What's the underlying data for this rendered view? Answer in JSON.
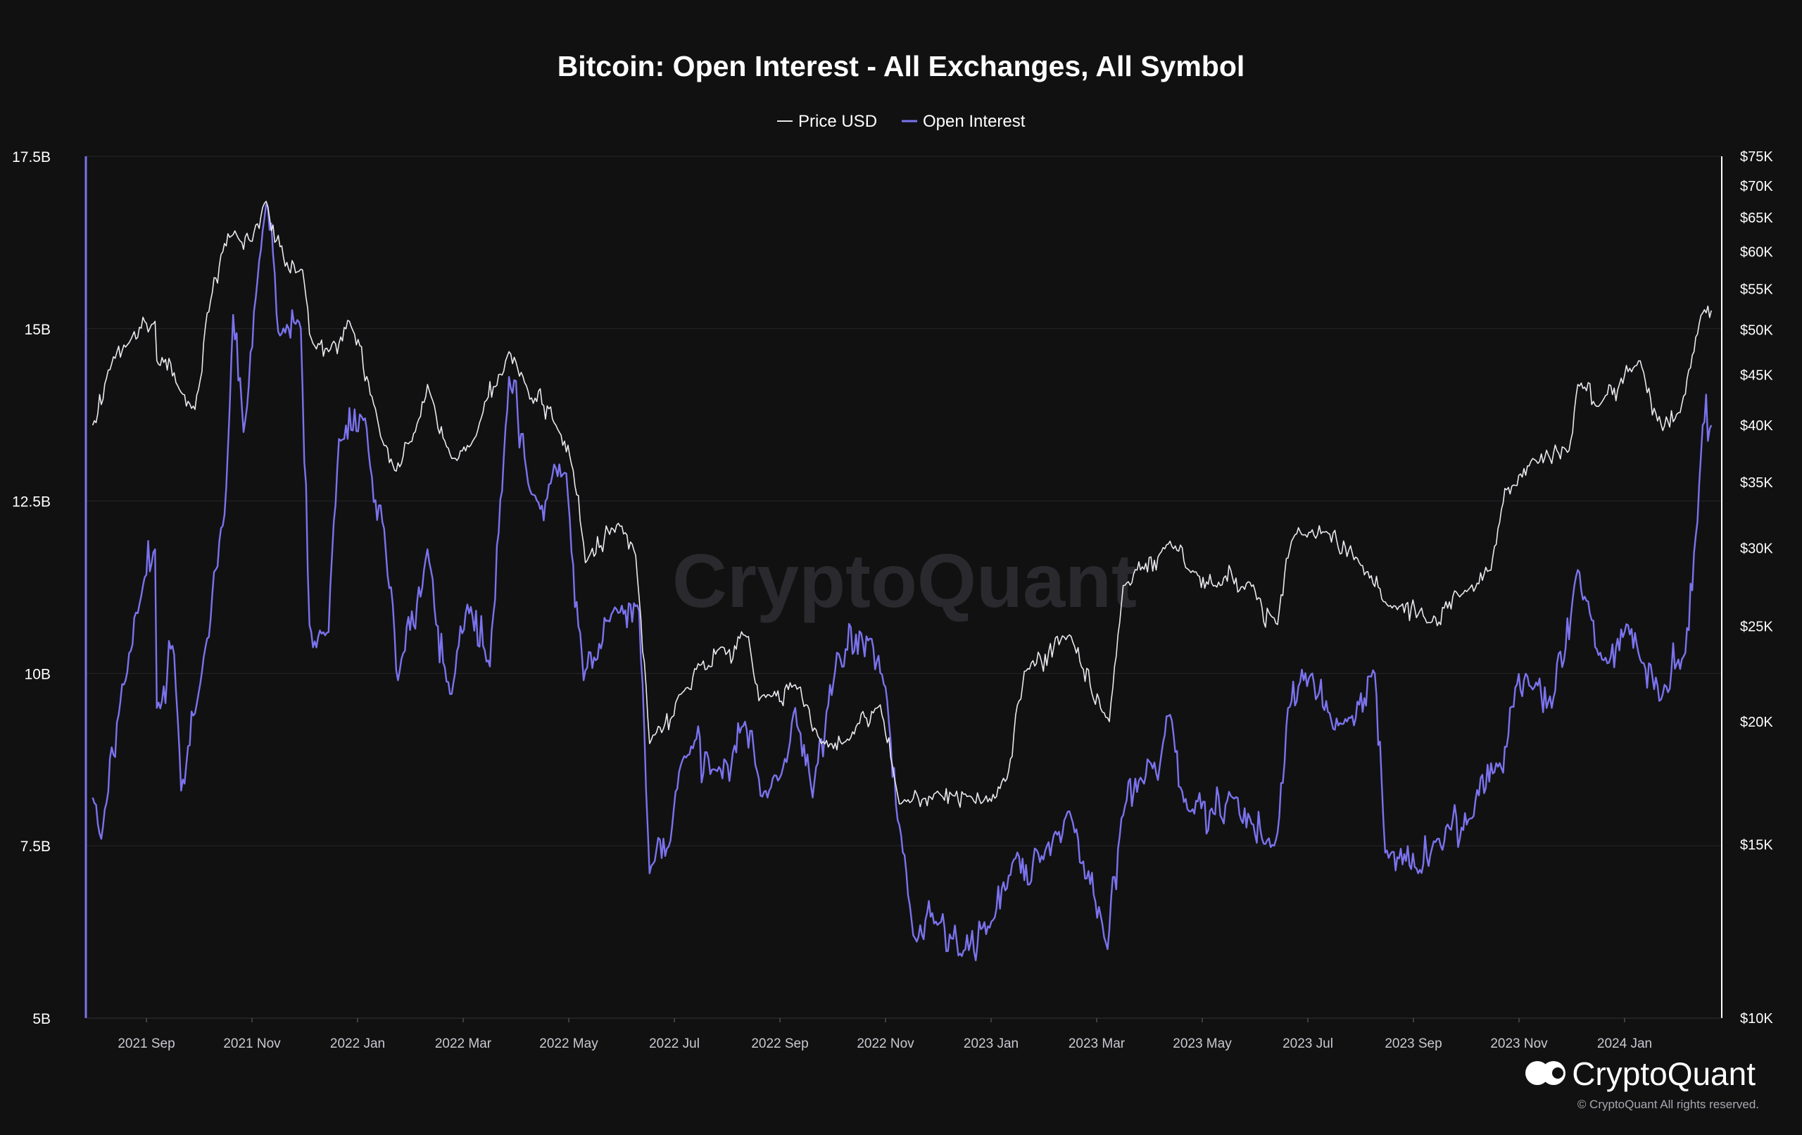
{
  "chart_data": {
    "type": "line",
    "title": "Bitcoin: Open Interest - All Exchanges, All Symbol",
    "legend": {
      "placement": "top-center",
      "entries": [
        {
          "label": "Price USD",
          "color": "#e9e9ee"
        },
        {
          "label": "Open Interest",
          "color": "#7b73ee"
        }
      ]
    },
    "x_ticks": [
      "2021 Sep",
      "2021 Nov",
      "2022 Jan",
      "2022 Mar",
      "2022 May",
      "2022 Jul",
      "2022 Sep",
      "2022 Nov",
      "2023 Jan",
      "2023 Mar",
      "2023 May",
      "2023 Jul",
      "2023 Sep",
      "2023 Nov",
      "2024 Jan"
    ],
    "x_range": [
      "2021-08-01",
      "2024-02-20"
    ],
    "left_axis": {
      "ticks": [
        "17.5B",
        "15B",
        "12.5B",
        "10B",
        "7.5B",
        "5B"
      ],
      "range": [
        5,
        17.5
      ],
      "unit": "B"
    },
    "right_axis": {
      "scale": "log",
      "ticks": [
        "$75K",
        "$70K",
        "$65K",
        "$60K",
        "$55K",
        "$50K",
        "$45K",
        "$40K",
        "$35K",
        "$30K",
        "$25K",
        "$20K",
        "$15K",
        "$10K"
      ],
      "tick_values": [
        75000,
        70000,
        65000,
        60000,
        55000,
        50000,
        45000,
        40000,
        35000,
        30000,
        25000,
        20000,
        15000,
        10000
      ],
      "range": [
        10000,
        75000
      ]
    },
    "grid": true,
    "series": [
      {
        "name": "Price USD",
        "axis": "right",
        "color": "#e9e9ee",
        "points": [
          [
            "2021-08-01",
            40000
          ],
          [
            "2021-08-10",
            45500
          ],
          [
            "2021-08-22",
            48500
          ],
          [
            "2021-09-06",
            51000
          ],
          [
            "2021-09-07",
            46500
          ],
          [
            "2021-09-20",
            43500
          ],
          [
            "2021-09-29",
            41500
          ],
          [
            "2021-10-06",
            52000
          ],
          [
            "2021-10-15",
            60000
          ],
          [
            "2021-10-22",
            63000
          ],
          [
            "2021-11-01",
            61500
          ],
          [
            "2021-11-09",
            67500
          ],
          [
            "2021-11-20",
            58000
          ],
          [
            "2021-11-30",
            57500
          ],
          [
            "2021-12-04",
            49500
          ],
          [
            "2021-12-15",
            47500
          ],
          [
            "2021-12-27",
            51000
          ],
          [
            "2022-01-10",
            42000
          ],
          [
            "2022-01-22",
            36000
          ],
          [
            "2022-02-01",
            38500
          ],
          [
            "2022-02-10",
            44000
          ],
          [
            "2022-02-24",
            37000
          ],
          [
            "2022-03-10",
            39000
          ],
          [
            "2022-03-29",
            47500
          ],
          [
            "2022-04-10",
            42500
          ],
          [
            "2022-04-25",
            40000
          ],
          [
            "2022-05-05",
            36000
          ],
          [
            "2022-05-12",
            29000
          ],
          [
            "2022-05-31",
            31800
          ],
          [
            "2022-06-10",
            29500
          ],
          [
            "2022-06-18",
            19000
          ],
          [
            "2022-07-08",
            21500
          ],
          [
            "2022-07-29",
            23800
          ],
          [
            "2022-08-14",
            24400
          ],
          [
            "2022-08-20",
            21000
          ],
          [
            "2022-09-10",
            21800
          ],
          [
            "2022-09-25",
            19000
          ],
          [
            "2022-10-10",
            19200
          ],
          [
            "2022-10-29",
            20800
          ],
          [
            "2022-11-09",
            16500
          ],
          [
            "2022-12-01",
            17000
          ],
          [
            "2022-12-20",
            16800
          ],
          [
            "2023-01-01",
            16600
          ],
          [
            "2023-01-10",
            17500
          ],
          [
            "2023-01-20",
            22500
          ],
          [
            "2023-02-15",
            24500
          ],
          [
            "2023-03-10",
            20000
          ],
          [
            "2023-03-18",
            27500
          ],
          [
            "2023-04-14",
            30500
          ],
          [
            "2023-04-25",
            28500
          ],
          [
            "2023-05-10",
            27500
          ],
          [
            "2023-05-30",
            27700
          ],
          [
            "2023-06-15",
            25100
          ],
          [
            "2023-06-23",
            30500
          ],
          [
            "2023-07-13",
            31200
          ],
          [
            "2023-07-31",
            29300
          ],
          [
            "2023-08-17",
            26300
          ],
          [
            "2023-09-11",
            25200
          ],
          [
            "2023-09-30",
            27000
          ],
          [
            "2023-10-16",
            28500
          ],
          [
            "2023-10-24",
            34500
          ],
          [
            "2023-11-09",
            37000
          ],
          [
            "2023-11-30",
            37700
          ],
          [
            "2023-12-05",
            44000
          ],
          [
            "2023-12-18",
            42000
          ],
          [
            "2024-01-10",
            46500
          ],
          [
            "2024-01-23",
            39500
          ],
          [
            "2024-02-05",
            43000
          ],
          [
            "2024-02-10",
            47500
          ],
          [
            "2024-02-15",
            52000
          ],
          [
            "2024-02-20",
            52300
          ]
        ]
      },
      {
        "name": "Open Interest",
        "axis": "left",
        "unit": "B",
        "color": "#7b73ee",
        "points": [
          [
            "2021-08-01",
            8.2
          ],
          [
            "2021-08-06",
            7.6
          ],
          [
            "2021-08-20",
            9.9
          ],
          [
            "2021-08-28",
            11.0
          ],
          [
            "2021-09-06",
            11.8
          ],
          [
            "2021-09-07",
            9.5
          ],
          [
            "2021-09-16",
            10.4
          ],
          [
            "2021-09-21",
            8.3
          ],
          [
            "2021-10-01",
            9.7
          ],
          [
            "2021-10-16",
            12.3
          ],
          [
            "2021-10-21",
            15.2
          ],
          [
            "2021-10-27",
            13.5
          ],
          [
            "2021-11-09",
            16.8
          ],
          [
            "2021-11-17",
            14.9
          ],
          [
            "2021-11-29",
            15.0
          ],
          [
            "2021-12-04",
            10.7
          ],
          [
            "2021-12-15",
            10.6
          ],
          [
            "2021-12-21",
            13.4
          ],
          [
            "2022-01-05",
            13.7
          ],
          [
            "2022-01-16",
            12.1
          ],
          [
            "2022-01-24",
            9.9
          ],
          [
            "2022-02-10",
            11.8
          ],
          [
            "2022-02-23",
            9.7
          ],
          [
            "2022-03-05",
            11.0
          ],
          [
            "2022-03-18",
            10.1
          ],
          [
            "2022-03-29",
            14.3
          ],
          [
            "2022-04-11",
            12.6
          ],
          [
            "2022-05-01",
            12.9
          ],
          [
            "2022-05-11",
            9.9
          ],
          [
            "2022-05-28",
            10.9
          ],
          [
            "2022-06-12",
            10.9
          ],
          [
            "2022-06-18",
            7.1
          ],
          [
            "2022-07-08",
            8.8
          ],
          [
            "2022-07-26",
            8.6
          ],
          [
            "2022-08-12",
            9.3
          ],
          [
            "2022-08-25",
            8.2
          ],
          [
            "2022-09-10",
            9.5
          ],
          [
            "2022-09-20",
            8.2
          ],
          [
            "2022-10-04",
            10.3
          ],
          [
            "2022-10-24",
            10.5
          ],
          [
            "2022-11-01",
            9.8
          ],
          [
            "2022-11-09",
            7.8
          ],
          [
            "2022-11-17",
            6.2
          ],
          [
            "2022-11-30",
            6.4
          ],
          [
            "2022-12-15",
            5.9
          ],
          [
            "2023-01-01",
            6.4
          ],
          [
            "2023-01-14",
            7.3
          ],
          [
            "2023-01-31",
            7.3
          ],
          [
            "2023-02-15",
            8.0
          ],
          [
            "2023-03-09",
            6.0
          ],
          [
            "2023-03-17",
            7.9
          ],
          [
            "2023-03-30",
            8.4
          ],
          [
            "2023-04-14",
            9.4
          ],
          [
            "2023-04-25",
            8.0
          ],
          [
            "2023-05-20",
            8.2
          ],
          [
            "2023-06-13",
            7.5
          ],
          [
            "2023-06-21",
            9.5
          ],
          [
            "2023-07-05",
            10.0
          ],
          [
            "2023-07-13",
            9.6
          ],
          [
            "2023-07-25",
            9.3
          ],
          [
            "2023-08-10",
            10.0
          ],
          [
            "2023-08-16",
            7.4
          ],
          [
            "2023-09-04",
            7.1
          ],
          [
            "2023-09-15",
            7.6
          ],
          [
            "2023-10-05",
            7.9
          ],
          [
            "2023-10-21",
            8.7
          ],
          [
            "2023-10-27",
            9.5
          ],
          [
            "2023-11-10",
            9.8
          ],
          [
            "2023-11-20",
            9.5
          ],
          [
            "2023-12-05",
            11.5
          ],
          [
            "2023-12-19",
            10.2
          ],
          [
            "2024-01-01",
            10.6
          ],
          [
            "2024-01-10",
            10.2
          ],
          [
            "2024-01-23",
            9.7
          ],
          [
            "2024-02-05",
            10.3
          ],
          [
            "2024-02-11",
            12.0
          ],
          [
            "2024-02-15",
            13.6
          ],
          [
            "2024-02-20",
            13.6
          ]
        ]
      }
    ]
  },
  "watermark": "CryptoQuant",
  "branding": {
    "logo_text": "CryptoQuant",
    "copyright": "© CryptoQuant All rights reserved."
  }
}
